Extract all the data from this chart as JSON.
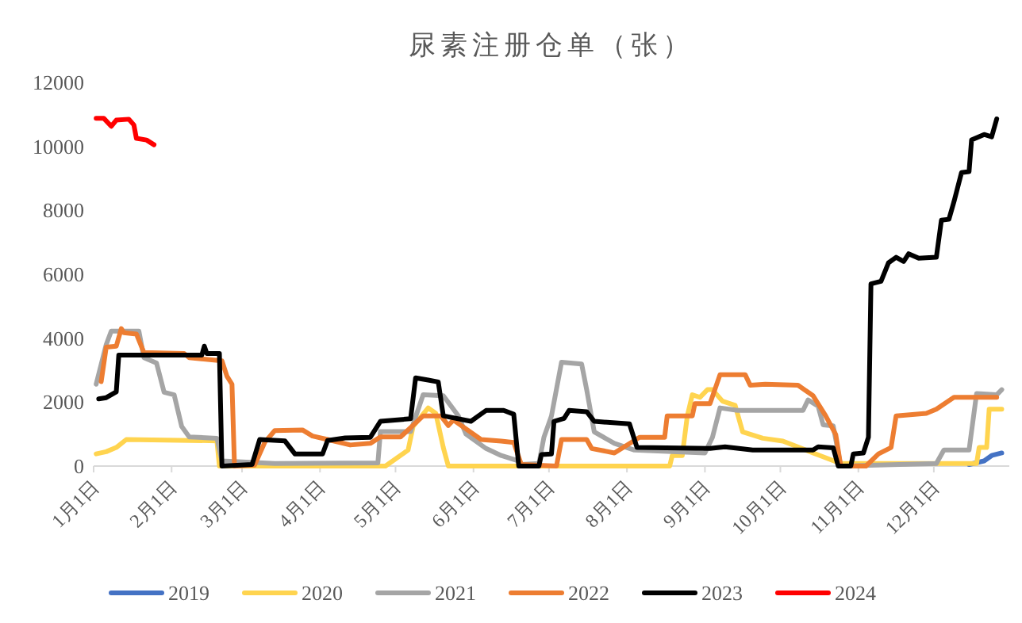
{
  "chart_data": {
    "type": "line",
    "title": "尿素注册仓单（张）",
    "xlim": [
      "--01-01",
      "--12-31"
    ],
    "xticks": [
      {
        "value": "--01-01",
        "label": "1月1日"
      },
      {
        "value": "--02-01",
        "label": "2月1日"
      },
      {
        "value": "--03-01",
        "label": "3月1日"
      },
      {
        "value": "--04-01",
        "label": "4月1日"
      },
      {
        "value": "--05-01",
        "label": "5月1日"
      },
      {
        "value": "--06-01",
        "label": "6月1日"
      },
      {
        "value": "--07-01",
        "label": "7月1日"
      },
      {
        "value": "--08-01",
        "label": "8月1日"
      },
      {
        "value": "--09-01",
        "label": "9月1日"
      },
      {
        "value": "--10-01",
        "label": "10月1日"
      },
      {
        "value": "--11-01",
        "label": "11月1日"
      },
      {
        "value": "--12-01",
        "label": "12月1日"
      }
    ],
    "ylim": [
      0,
      12000
    ],
    "yticks": [
      0,
      2000,
      4000,
      6000,
      8000,
      10000,
      12000
    ],
    "grid": false,
    "legend": "bottom",
    "marker": "none",
    "line_style": "solid",
    "series": [
      {
        "name": "2019",
        "color": "#4472c4",
        "x": [
          "--12-15",
          "--12-21",
          "--12-24",
          "--12-28"
        ],
        "values": [
          50,
          160,
          330,
          410
        ]
      },
      {
        "name": "2020",
        "color": "#ffd44f",
        "x": [
          "--01-02",
          "--01-06",
          "--01-10",
          "--01-14",
          "--02-19",
          "--02-20",
          "--04-27",
          "--05-06",
          "--05-08",
          "--05-14",
          "--05-17",
          "--05-20",
          "--05-22",
          "--08-18",
          "--08-19",
          "--08-23",
          "--08-25",
          "--08-27",
          "--08-30",
          "--09-02",
          "--09-04",
          "--09-08",
          "--09-13",
          "--09-16",
          "--09-24",
          "--10-02",
          "--10-14",
          "--10-25",
          "--12-18",
          "--12-19",
          "--12-22",
          "--12-23",
          "--12-28"
        ],
        "values": [
          380,
          450,
          580,
          830,
          790,
          0,
          0,
          500,
          1240,
          1820,
          1650,
          580,
          0,
          0,
          330,
          330,
          1570,
          2230,
          2150,
          2390,
          2390,
          2030,
          1900,
          1070,
          870,
          780,
          410,
          80,
          80,
          580,
          580,
          1780,
          1780
        ]
      },
      {
        "name": "2021",
        "color": "#a5a5a5",
        "x": [
          "--01-02",
          "--01-06",
          "--01-08",
          "--01-19",
          "--01-21",
          "--01-26",
          "--01-29",
          "--02-02",
          "--02-05",
          "--02-08",
          "--02-19",
          "--02-21",
          "--03-14",
          "--04-24",
          "--04-25",
          "--05-07",
          "--05-12",
          "--05-20",
          "--05-26",
          "--05-29",
          "--06-06",
          "--06-12",
          "--06-19",
          "--06-20",
          "--06-27",
          "--06-29",
          "--07-02",
          "--07-06",
          "--07-14",
          "--07-16",
          "--07-19",
          "--07-27",
          "--08-04",
          "--09-01",
          "--09-04",
          "--09-07",
          "--09-14",
          "--10-10",
          "--10-12",
          "--10-16",
          "--10-18",
          "--10-22",
          "--10-25",
          "--12-02",
          "--12-05",
          "--12-15",
          "--12-18",
          "--12-26",
          "--12-28"
        ],
        "values": [
          2560,
          3800,
          4220,
          4220,
          3390,
          3220,
          2310,
          2230,
          1240,
          910,
          870,
          160,
          80,
          100,
          1080,
          1080,
          2230,
          2200,
          1570,
          1000,
          550,
          330,
          160,
          50,
          80,
          900,
          1570,
          3250,
          3190,
          2390,
          1070,
          710,
          500,
          410,
          900,
          1820,
          1740,
          1740,
          2070,
          1870,
          1290,
          1260,
          0,
          80,
          500,
          500,
          2270,
          2230,
          2390
        ]
      },
      {
        "name": "2022",
        "color": "#ed7d31",
        "x": [
          "--01-04",
          "--01-06",
          "--01-10",
          "--01-12",
          "--01-13",
          "--01-18",
          "--01-21",
          "--02-06",
          "--02-08",
          "--02-21",
          "--02-23",
          "--02-25",
          "--02-26",
          "--03-06",
          "--03-10",
          "--03-14",
          "--03-25",
          "--03-29",
          "--04-04",
          "--04-13",
          "--04-21",
          "--04-25",
          "--05-03",
          "--05-12",
          "--05-19",
          "--05-22",
          "--05-24",
          "--06-04",
          "--06-12",
          "--06-17",
          "--06-20",
          "--07-04",
          "--07-06",
          "--07-16",
          "--07-18",
          "--07-27",
          "--08-06",
          "--08-16",
          "--08-17",
          "--08-27",
          "--08-28",
          "--09-03",
          "--09-07",
          "--09-17",
          "--09-19",
          "--09-25",
          "--10-08",
          "--10-14",
          "--10-19",
          "--10-23",
          "--10-25",
          "--11-04",
          "--11-09",
          "--11-14",
          "--11-16",
          "--11-28",
          "--12-02",
          "--12-09",
          "--12-26"
        ],
        "values": [
          2640,
          3720,
          3750,
          4300,
          4170,
          4130,
          3550,
          3520,
          3390,
          3290,
          2810,
          2560,
          0,
          30,
          740,
          1110,
          1130,
          940,
          830,
          660,
          710,
          910,
          910,
          1570,
          1570,
          1270,
          1440,
          830,
          780,
          740,
          50,
          0,
          830,
          830,
          550,
          410,
          900,
          900,
          1570,
          1570,
          1950,
          1950,
          2860,
          2860,
          2530,
          2560,
          2530,
          2200,
          1570,
          990,
          0,
          0,
          380,
          580,
          1570,
          1650,
          1780,
          2150,
          2150
        ]
      },
      {
        "name": "2023",
        "color": "#000000",
        "x": [
          "--01-03",
          "--01-06",
          "--01-10",
          "--01-11",
          "--02-13",
          "--02-14",
          "--02-15",
          "--02-20",
          "--02-21",
          "--03-05",
          "--03-08",
          "--03-18",
          "--03-22",
          "--04-02",
          "--04-04",
          "--04-11",
          "--04-21",
          "--04-25",
          "--05-07",
          "--05-09",
          "--05-14",
          "--05-18",
          "--05-20",
          "--05-31",
          "--06-03",
          "--06-06",
          "--06-13",
          "--06-17",
          "--06-19",
          "--06-27",
          "--06-28",
          "--07-02",
          "--07-03",
          "--07-07",
          "--07-09",
          "--07-16",
          "--07-19",
          "--08-02",
          "--08-05",
          "--09-03",
          "--09-09",
          "--09-20",
          "--10-14",
          "--10-16",
          "--10-22",
          "--10-24",
          "--10-29",
          "--10-30",
          "--11-03",
          "--11-05",
          "--11-06",
          "--11-10",
          "--11-13",
          "--11-16",
          "--11-19",
          "--11-21",
          "--11-25",
          "--12-02",
          "--12-04",
          "--12-07",
          "--12-09",
          "--12-12",
          "--12-15",
          "--12-16",
          "--12-21",
          "--12-24",
          "--12-26"
        ],
        "values": [
          2100,
          2140,
          2320,
          3470,
          3470,
          3750,
          3520,
          3520,
          0,
          50,
          830,
          790,
          380,
          380,
          800,
          880,
          900,
          1400,
          1480,
          2760,
          2690,
          2630,
          1570,
          1400,
          1570,
          1740,
          1740,
          1620,
          0,
          0,
          360,
          380,
          1400,
          1490,
          1740,
          1700,
          1400,
          1320,
          580,
          550,
          600,
          500,
          500,
          600,
          570,
          0,
          0,
          380,
          410,
          900,
          5700,
          5780,
          6360,
          6530,
          6400,
          6640,
          6500,
          6530,
          7690,
          7720,
          8270,
          9180,
          9210,
          10200,
          10370,
          10300,
          10860
        ]
      },
      {
        "name": "2024",
        "color": "#ff0000",
        "x": [
          "--01-02",
          "--01-05",
          "--01-08",
          "--01-10",
          "--01-15",
          "--01-17",
          "--01-18",
          "--01-22",
          "--01-25"
        ],
        "values": [
          10880,
          10880,
          10630,
          10820,
          10850,
          10670,
          10250,
          10200,
          10050
        ]
      }
    ]
  }
}
